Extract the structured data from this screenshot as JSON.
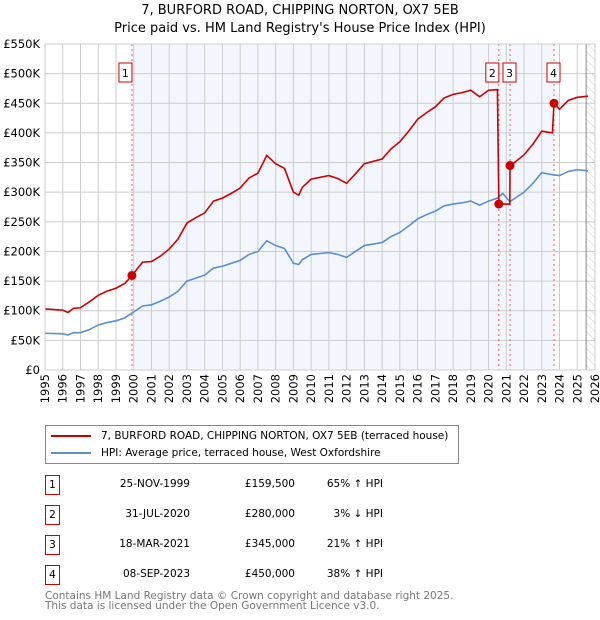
{
  "title": "7, BURFORD ROAD, CHIPPING NORTON, OX7 5EB",
  "subtitle": "Price paid vs. HM Land Registry's House Price Index (HPI)",
  "chart_data": {
    "type": "line",
    "title": "7, BURFORD ROAD, CHIPPING NORTON, OX7 5EB",
    "subtitle": "Price paid vs. HM Land Registry's House Price Index (HPI)",
    "xlim": [
      1995,
      2026
    ],
    "ylim": [
      0,
      550000
    ],
    "x_ticks": [
      "1995",
      "1996",
      "1997",
      "1998",
      "1999",
      "2000",
      "2001",
      "2002",
      "2003",
      "2004",
      "2005",
      "2006",
      "2007",
      "2008",
      "2009",
      "2010",
      "2011",
      "2012",
      "2013",
      "2014",
      "2015",
      "2016",
      "2017",
      "2018",
      "2019",
      "2020",
      "2021",
      "2022",
      "2023",
      "2024",
      "2025",
      "2026"
    ],
    "y_ticks": [
      {
        "v": 0,
        "label": "£0"
      },
      {
        "v": 50000,
        "label": "£50K"
      },
      {
        "v": 100000,
        "label": "£100K"
      },
      {
        "v": 150000,
        "label": "£150K"
      },
      {
        "v": 200000,
        "label": "£200K"
      },
      {
        "v": 250000,
        "label": "£250K"
      },
      {
        "v": 300000,
        "label": "£300K"
      },
      {
        "v": 350000,
        "label": "£350K"
      },
      {
        "v": 400000,
        "label": "£400K"
      },
      {
        "v": 450000,
        "label": "£450K"
      },
      {
        "v": 500000,
        "label": "£500K"
      },
      {
        "v": 550000,
        "label": "£550K"
      }
    ],
    "grid": true,
    "legend_position": "below",
    "series": [
      {
        "name": "7, BURFORD ROAD, CHIPPING NORTON, OX7 5EB (terraced house)",
        "color": "#cc0000",
        "points": [
          [
            1995,
            103
          ],
          [
            1996,
            101
          ],
          [
            1996.3,
            97
          ],
          [
            1996.6,
            104
          ],
          [
            1997,
            105
          ],
          [
            1997.5,
            115
          ],
          [
            1998,
            126
          ],
          [
            1998.5,
            133
          ],
          [
            1999,
            138
          ],
          [
            1999.5,
            146
          ],
          [
            1999.9,
            159.5
          ],
          [
            2000.5,
            182
          ],
          [
            2001,
            183
          ],
          [
            2001.5,
            192
          ],
          [
            2002,
            204
          ],
          [
            2002.5,
            221
          ],
          [
            2003,
            248
          ],
          [
            2003.5,
            257
          ],
          [
            2004,
            265
          ],
          [
            2004.5,
            285
          ],
          [
            2005,
            290
          ],
          [
            2005.5,
            298
          ],
          [
            2006,
            307
          ],
          [
            2006.5,
            324
          ],
          [
            2007,
            332
          ],
          [
            2007.5,
            362
          ],
          [
            2008,
            348
          ],
          [
            2008.5,
            340
          ],
          [
            2009,
            300
          ],
          [
            2009.3,
            295
          ],
          [
            2009.5,
            308
          ],
          [
            2010,
            322
          ],
          [
            2011,
            328
          ],
          [
            2011.5,
            323
          ],
          [
            2012,
            315
          ],
          [
            2012.5,
            331
          ],
          [
            2013,
            348
          ],
          [
            2014,
            356
          ],
          [
            2014.5,
            373
          ],
          [
            2015,
            385
          ],
          [
            2015.5,
            403
          ],
          [
            2016,
            423
          ],
          [
            2016.5,
            434
          ],
          [
            2017,
            444
          ],
          [
            2017.5,
            459
          ],
          [
            2018,
            465
          ],
          [
            2018.5,
            468
          ],
          [
            2019,
            472
          ],
          [
            2019.5,
            461
          ],
          [
            2020,
            472
          ],
          [
            2020.5,
            473
          ],
          [
            2020.58,
            280
          ],
          [
            2021.2,
            280
          ],
          [
            2021.21,
            345
          ],
          [
            2021.5,
            351
          ],
          [
            2022,
            363
          ],
          [
            2022.5,
            381
          ],
          [
            2023,
            403
          ],
          [
            2023.6,
            400
          ],
          [
            2023.69,
            450
          ],
          [
            2024,
            440
          ],
          [
            2024.5,
            455
          ],
          [
            2025,
            460
          ],
          [
            2025.6,
            462
          ]
        ]
      },
      {
        "name": "HPI: Average price, terraced house, West Oxfordshire",
        "color": "#5b8fd0",
        "points": [
          [
            1995,
            62
          ],
          [
            1996,
            61
          ],
          [
            1996.3,
            59
          ],
          [
            1996.6,
            63
          ],
          [
            1997,
            63
          ],
          [
            1997.5,
            68
          ],
          [
            1998,
            76
          ],
          [
            1998.5,
            80
          ],
          [
            1999,
            83
          ],
          [
            1999.5,
            88
          ],
          [
            1999.9,
            96
          ],
          [
            2000.5,
            108
          ],
          [
            2001,
            110
          ],
          [
            2001.5,
            116
          ],
          [
            2002,
            123
          ],
          [
            2002.5,
            133
          ],
          [
            2003,
            150
          ],
          [
            2003.5,
            155
          ],
          [
            2004,
            160
          ],
          [
            2004.5,
            172
          ],
          [
            2005,
            175
          ],
          [
            2005.5,
            180
          ],
          [
            2006,
            185
          ],
          [
            2006.5,
            195
          ],
          [
            2007,
            200
          ],
          [
            2007.5,
            218
          ],
          [
            2008,
            210
          ],
          [
            2008.5,
            205
          ],
          [
            2009,
            180
          ],
          [
            2009.3,
            178
          ],
          [
            2009.5,
            186
          ],
          [
            2010,
            195
          ],
          [
            2011,
            198
          ],
          [
            2011.5,
            195
          ],
          [
            2012,
            190
          ],
          [
            2012.5,
            200
          ],
          [
            2013,
            210
          ],
          [
            2014,
            215
          ],
          [
            2014.5,
            225
          ],
          [
            2015,
            232
          ],
          [
            2015.5,
            243
          ],
          [
            2016,
            255
          ],
          [
            2016.5,
            262
          ],
          [
            2017,
            268
          ],
          [
            2017.5,
            277
          ],
          [
            2018,
            280
          ],
          [
            2018.5,
            282
          ],
          [
            2019,
            285
          ],
          [
            2019.5,
            278
          ],
          [
            2020,
            285
          ],
          [
            2020.5,
            290
          ],
          [
            2020.8,
            298
          ],
          [
            2021.2,
            284
          ],
          [
            2021.5,
            290
          ],
          [
            2022,
            300
          ],
          [
            2022.5,
            315
          ],
          [
            2023,
            333
          ],
          [
            2023.5,
            330
          ],
          [
            2024,
            328
          ],
          [
            2024.5,
            335
          ],
          [
            2025,
            338
          ],
          [
            2025.6,
            336
          ]
        ]
      }
    ],
    "point_units": "thousands GBP",
    "sales": [
      {
        "n": "1",
        "x": 1999.9,
        "price": 159.5
      },
      {
        "n": "2",
        "x": 2020.58,
        "price": 280
      },
      {
        "n": "3",
        "x": 2021.21,
        "price": 345
      },
      {
        "n": "4",
        "x": 2023.69,
        "price": 450
      }
    ],
    "shaded_range": [
      1999.9,
      2023.69
    ],
    "hatched_from": 2025.5
  },
  "legend": [
    {
      "label": "7, BURFORD ROAD, CHIPPING NORTON, OX7 5EB (terraced house)",
      "color": "#cc0000"
    },
    {
      "label": "HPI: Average price, terraced house, West Oxfordshire",
      "color": "#5b8fd0"
    }
  ],
  "transactions": [
    {
      "n": "1",
      "date": "25-NOV-1999",
      "price": "£159,500",
      "hpi": "65% ↑ HPI"
    },
    {
      "n": "2",
      "date": "31-JUL-2020",
      "price": "£280,000",
      "hpi": "3% ↓ HPI"
    },
    {
      "n": "3",
      "date": "18-MAR-2021",
      "price": "£345,000",
      "hpi": "21% ↑ HPI"
    },
    {
      "n": "4",
      "date": "08-SEP-2023",
      "price": "£450,000",
      "hpi": "38% ↑ HPI"
    }
  ],
  "footer": {
    "line1": "Contains HM Land Registry data © Crown copyright and database right 2025.",
    "line2": "This data is licensed under the Open Government Licence v3.0."
  }
}
